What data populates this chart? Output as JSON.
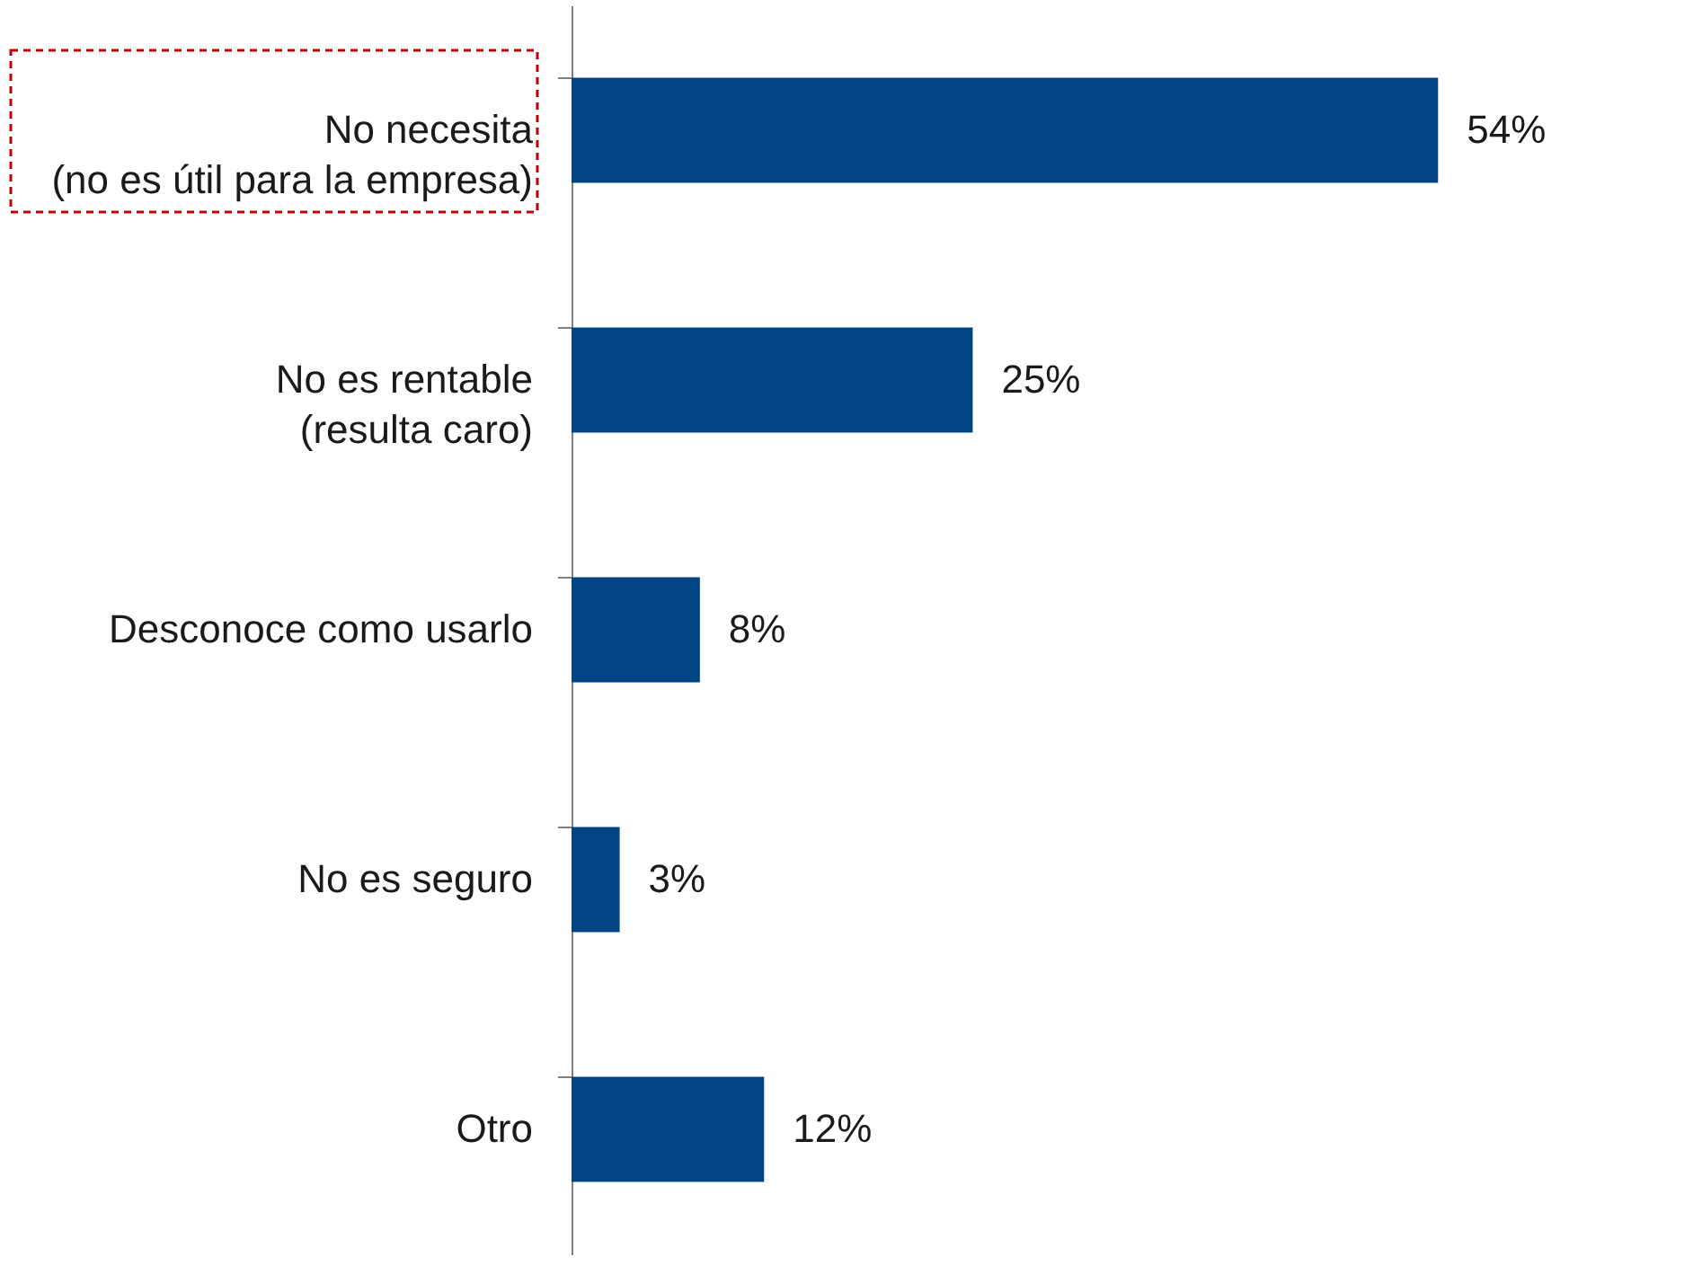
{
  "chart_data": {
    "type": "bar",
    "orientation": "horizontal",
    "categories": [
      "No necesita\n(no es útil para la empresa)",
      "No es rentable\n(resulta caro)",
      "Desconoce como usarlo",
      "No es seguro",
      "Otro"
    ],
    "values": [
      54,
      25,
      8,
      3,
      12
    ],
    "value_labels": [
      "54%",
      "25%",
      "8%",
      "3%",
      "12%"
    ],
    "color": "#004481",
    "grid": false
  }
}
